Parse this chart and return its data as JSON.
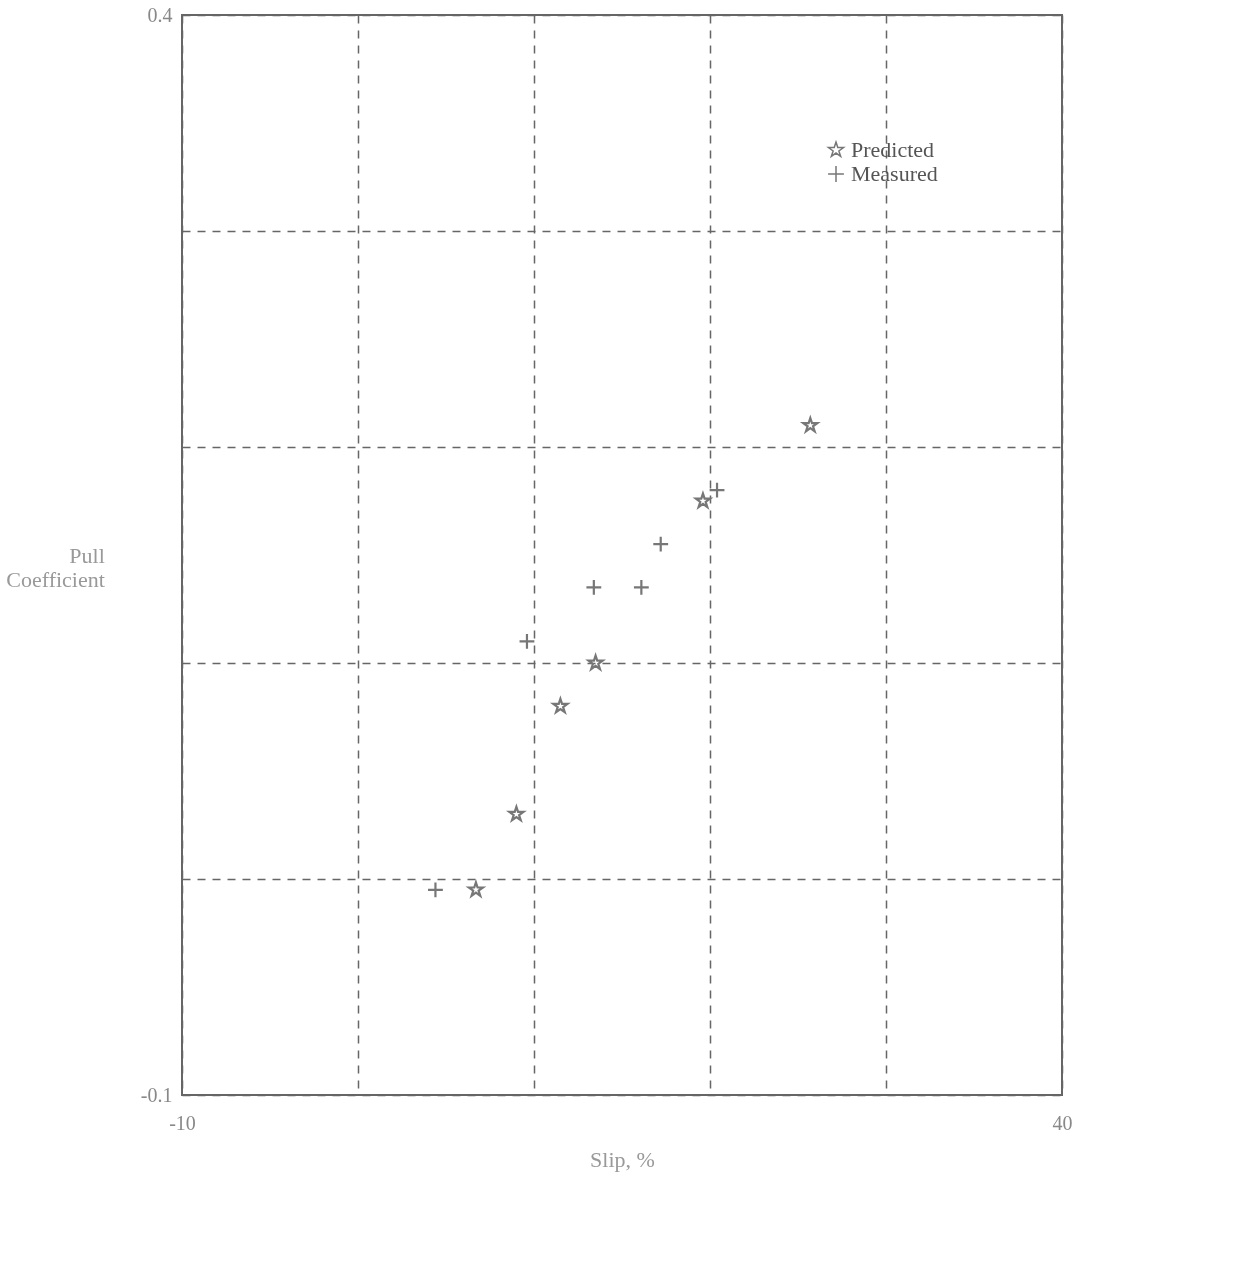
{
  "chart_data": {
    "type": "scatter",
    "xlabel": "Slip, %",
    "ylabel": "Pull Coefficient",
    "series": [
      {
        "name": "Predicted",
        "color": "#777777",
        "marker": "star",
        "x": [
          6.7,
          9.0,
          11.5,
          13.5,
          19.6,
          25.7
        ],
        "values": [
          -0.005,
          0.03,
          0.08,
          0.1,
          0.175,
          0.21
        ]
      },
      {
        "name": "Measured",
        "color": "#777777",
        "marker": "cross",
        "x": [
          4.4,
          9.6,
          13.4,
          16.1,
          17.2,
          20.4
        ],
        "values": [
          -0.005,
          0.11,
          0.135,
          0.135,
          0.155,
          0.18
        ]
      }
    ],
    "xlim": [
      -10,
      40
    ],
    "ylim": [
      -0.1,
      0.4
    ],
    "xticks": [
      -10,
      {
        "value": 0,
        "label": null
      },
      {
        "value": 10,
        "label": null
      },
      {
        "value": 20,
        "label": null
      },
      {
        "value": 30,
        "label": null
      },
      40
    ],
    "yticks": [
      -0.1,
      {
        "value": 0.0,
        "label": null
      },
      {
        "value": 0.1,
        "label": null
      },
      {
        "value": 0.2,
        "label": null
      },
      {
        "value": 0.3,
        "label": null
      },
      0.4
    ],
    "grid": true,
    "legend": "top right"
  }
}
